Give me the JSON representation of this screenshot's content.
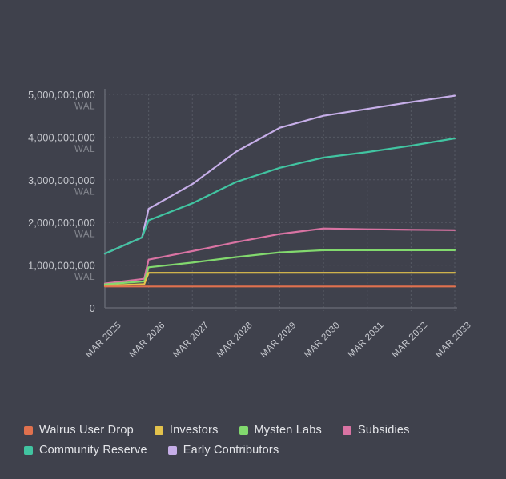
{
  "chart_data": {
    "type": "line",
    "title": "",
    "unit": "WAL",
    "xlabel": "",
    "ylabel": "WAL",
    "xlim": [
      2025,
      2033
    ],
    "ylim": [
      0,
      5000000000
    ],
    "grid": true,
    "legend_position": "bottom",
    "x_ticks": [
      "MAR 2025",
      "MAR 2026",
      "MAR 2027",
      "MAR 2028",
      "MAR 2029",
      "MAR 2030",
      "MAR 2031",
      "MAR 2032",
      "MAR 2033"
    ],
    "y_ticks": [
      {
        "value": 5000000000,
        "label": "5,000,000,000",
        "unit": "WAL"
      },
      {
        "value": 4000000000,
        "label": "4,000,000,000",
        "unit": "WAL"
      },
      {
        "value": 3000000000,
        "label": "3,000,000,000",
        "unit": "WAL"
      },
      {
        "value": 2000000000,
        "label": "2,000,000,000",
        "unit": "WAL"
      },
      {
        "value": 1000000000,
        "label": "1,000,000,000",
        "unit": "WAL"
      },
      {
        "value": 0,
        "label": "0",
        "unit": ""
      }
    ],
    "series": [
      {
        "name": "Walrus User Drop",
        "color": "#e0714e",
        "points": [
          [
            2025,
            500000000
          ],
          [
            2026,
            500000000
          ],
          [
            2027,
            500000000
          ],
          [
            2028,
            500000000
          ],
          [
            2029,
            500000000
          ],
          [
            2030,
            500000000
          ],
          [
            2031,
            500000000
          ],
          [
            2032,
            500000000
          ],
          [
            2033,
            500000000
          ]
        ]
      },
      {
        "name": "Investors",
        "color": "#e3c24c",
        "points": [
          [
            2025,
            520000000
          ],
          [
            2025.9,
            555000000
          ],
          [
            2026,
            820000000
          ],
          [
            2027,
            820000000
          ],
          [
            2028,
            820000000
          ],
          [
            2029,
            820000000
          ],
          [
            2030,
            820000000
          ],
          [
            2031,
            820000000
          ],
          [
            2032,
            820000000
          ],
          [
            2033,
            820000000
          ]
        ]
      },
      {
        "name": "Mysten Labs",
        "color": "#82d96e",
        "points": [
          [
            2025,
            550000000
          ],
          [
            2025.9,
            620000000
          ],
          [
            2026,
            950000000
          ],
          [
            2027,
            1060000000
          ],
          [
            2028,
            1190000000
          ],
          [
            2029,
            1300000000
          ],
          [
            2030,
            1350000000
          ],
          [
            2031,
            1350000000
          ],
          [
            2032,
            1350000000
          ],
          [
            2033,
            1350000000
          ]
        ]
      },
      {
        "name": "Subsidies",
        "color": "#d973a3",
        "points": [
          [
            2025,
            570000000
          ],
          [
            2025.9,
            680000000
          ],
          [
            2026,
            1130000000
          ],
          [
            2027,
            1330000000
          ],
          [
            2028,
            1540000000
          ],
          [
            2029,
            1730000000
          ],
          [
            2030,
            1860000000
          ],
          [
            2031,
            1840000000
          ],
          [
            2032,
            1830000000
          ],
          [
            2033,
            1820000000
          ]
        ]
      },
      {
        "name": "Community Reserve",
        "color": "#41c4a1",
        "points": [
          [
            2025,
            1270000000
          ],
          [
            2025.85,
            1650000000
          ],
          [
            2026,
            2050000000
          ],
          [
            2027,
            2450000000
          ],
          [
            2028,
            2950000000
          ],
          [
            2029,
            3280000000
          ],
          [
            2030,
            3520000000
          ],
          [
            2031,
            3650000000
          ],
          [
            2032,
            3800000000
          ],
          [
            2033,
            3970000000
          ]
        ]
      },
      {
        "name": "Early Contributors",
        "color": "#c6aee8",
        "points": [
          [
            2025,
            1270000000
          ],
          [
            2025.85,
            1650000000
          ],
          [
            2026,
            2320000000
          ],
          [
            2027,
            2900000000
          ],
          [
            2028,
            3660000000
          ],
          [
            2029,
            4220000000
          ],
          [
            2030,
            4500000000
          ],
          [
            2031,
            4660000000
          ],
          [
            2032,
            4820000000
          ],
          [
            2033,
            4970000000
          ]
        ]
      }
    ],
    "colors": {
      "background": "#3f414c",
      "axis": "#6a6d77",
      "grid": "#565963",
      "tick_label": "#c7c9cf",
      "unit_label": "#84878f",
      "legend_text": "#e4e5e9"
    }
  },
  "legend": {
    "items": [
      {
        "label": "Walrus User Drop"
      },
      {
        "label": "Investors"
      },
      {
        "label": "Mysten Labs"
      },
      {
        "label": "Subsidies"
      },
      {
        "label": "Community Reserve"
      },
      {
        "label": "Early Contributors"
      }
    ]
  }
}
